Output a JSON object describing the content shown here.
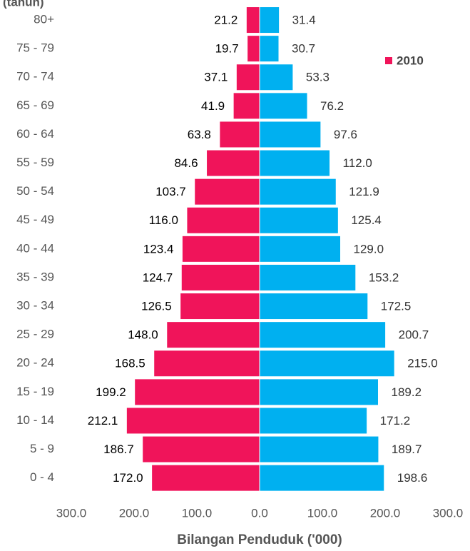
{
  "chart_data": {
    "type": "pyramid",
    "y_axis_label": "(tahun)",
    "x_axis_label": "Bilangan Penduduk ('000)",
    "categories": [
      "80+",
      "75 - 79",
      "70 - 74",
      "65 - 69",
      "60 - 64",
      "55 - 59",
      "50 - 54",
      "45 - 49",
      "40 - 44",
      "35 - 39",
      "30 - 34",
      "25 - 29",
      "20 - 24",
      "15 - 19",
      "10 - 14",
      "5 - 9",
      "0 - 4"
    ],
    "series": [
      {
        "name": "2010",
        "color": "#f0145a",
        "values": [
          -21.2,
          -19.7,
          -37.1,
          -41.9,
          -63.8,
          -84.6,
          -103.7,
          -116.0,
          -123.4,
          -124.7,
          -126.5,
          -148.0,
          -168.5,
          -199.2,
          -212.1,
          -186.7,
          -172.0
        ],
        "value_labels": [
          "21.2",
          "19.7",
          "37.1",
          "41.9",
          "63.8",
          "84.6",
          "103.7",
          "116.0",
          "123.4",
          "124.7",
          "126.5",
          "148.0",
          "168.5",
          "199.2",
          "212.1",
          "186.7",
          "172.0"
        ]
      },
      {
        "color": "#00b0f0",
        "values": [
          31.4,
          30.7,
          53.3,
          76.2,
          97.6,
          112.0,
          121.9,
          125.4,
          129.0,
          153.2,
          172.5,
          200.7,
          215.0,
          189.2,
          171.2,
          189.7,
          198.6
        ],
        "value_labels": [
          "31.4",
          "30.7",
          "53.3",
          "76.2",
          "97.6",
          "112.0",
          "121.9",
          "125.4",
          "129.0",
          "153.2",
          "172.5",
          "200.7",
          "215.0",
          "189.2",
          "171.2",
          "189.7",
          "198.6"
        ]
      }
    ],
    "xlim": [
      -300,
      300
    ],
    "xticks": [
      {
        "value": -300,
        "label": "300.0"
      },
      {
        "value": -200,
        "label": "200.0"
      },
      {
        "value": -100,
        "label": "100.0"
      },
      {
        "value": 0,
        "label": "0.0"
      },
      {
        "value": 100,
        "label": "100.0"
      },
      {
        "value": 200,
        "label": "200.0"
      },
      {
        "value": 300,
        "label": "300.0"
      }
    ],
    "legend": "top-right"
  }
}
